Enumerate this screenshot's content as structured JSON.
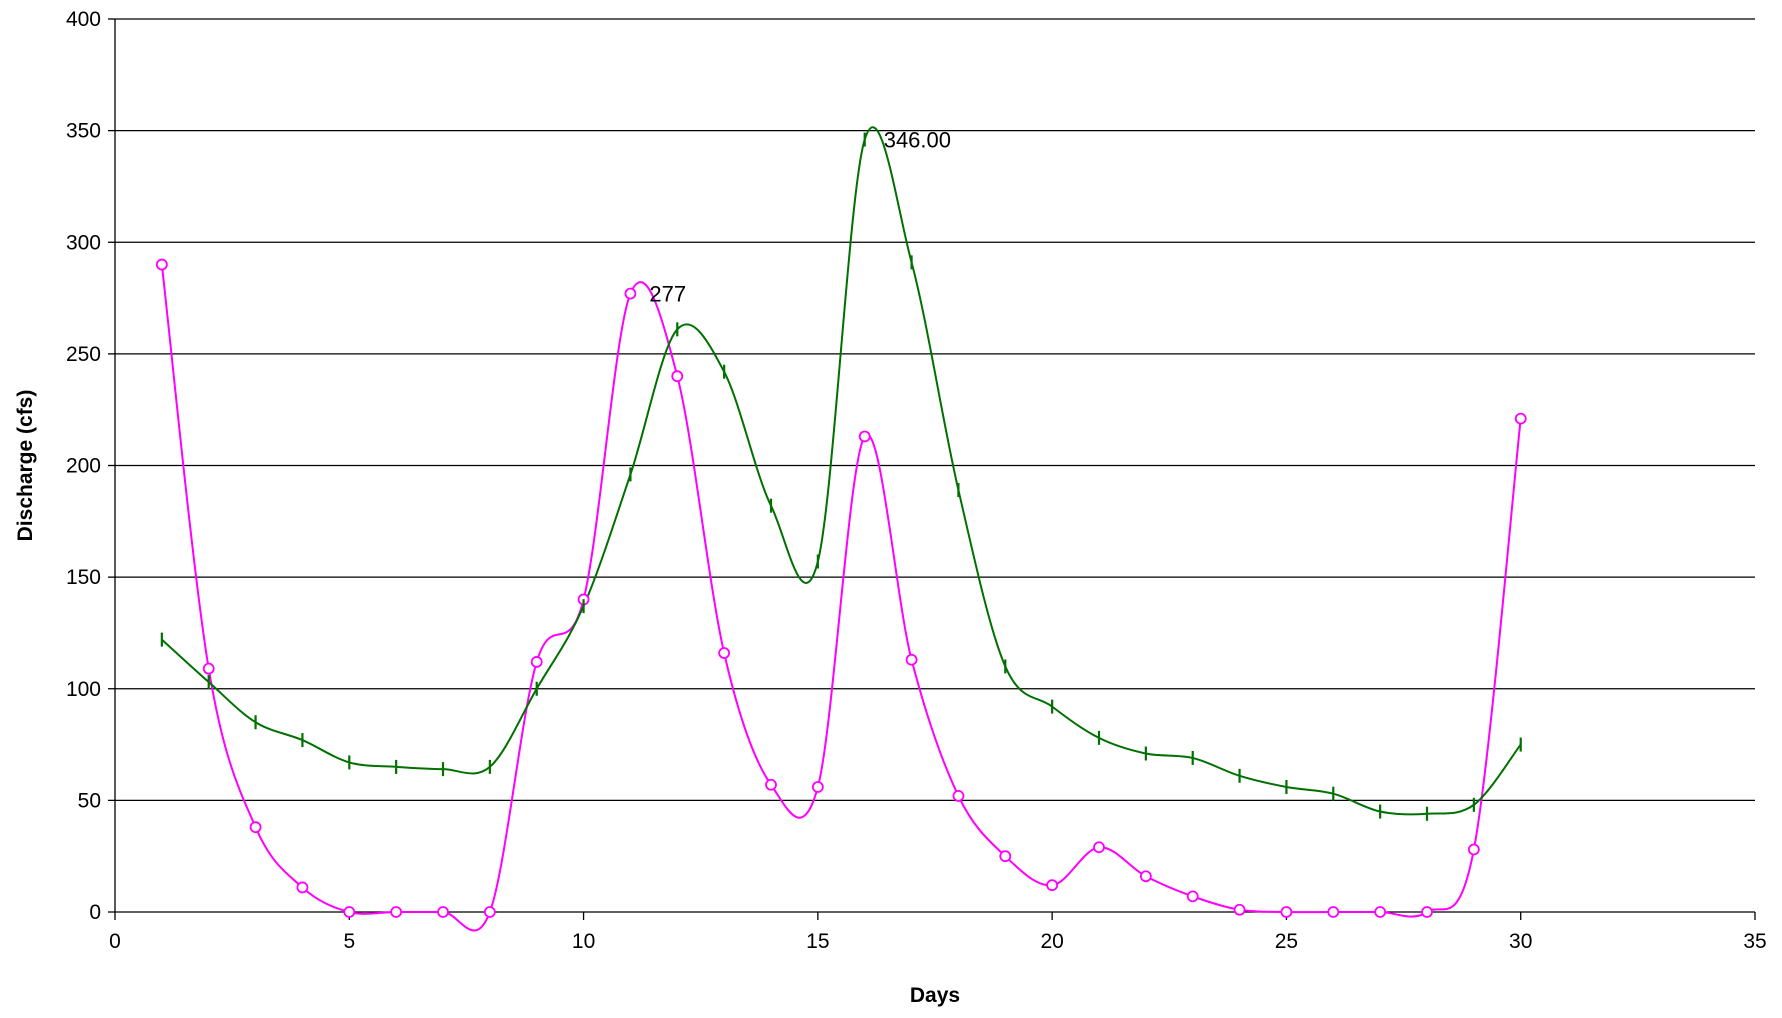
{
  "chart_data": {
    "type": "line",
    "title": "",
    "xlabel": "Days",
    "ylabel": "Discharge (cfs)",
    "xlim": [
      0,
      35
    ],
    "ylim": [
      0,
      400
    ],
    "xticks": [
      0,
      5,
      10,
      15,
      20,
      25,
      30,
      35
    ],
    "yticks": [
      0,
      50,
      100,
      150,
      200,
      250,
      300,
      350,
      400
    ],
    "grid": "horizontal",
    "legend": "none",
    "series": [
      {
        "color": "#ff00ff",
        "marker": "circle",
        "x": [
          1,
          2,
          3,
          4,
          5,
          6,
          7,
          8,
          9,
          10,
          11,
          12,
          13,
          14,
          15,
          16,
          17,
          18,
          19,
          20,
          21,
          22,
          23,
          24,
          25,
          26,
          27,
          28,
          29,
          30
        ],
        "y": [
          290,
          109,
          38,
          11,
          0,
          0,
          0,
          0,
          112,
          140,
          277,
          240,
          116,
          57,
          56,
          213,
          113,
          52,
          25,
          12,
          29,
          16,
          7,
          1,
          0,
          0,
          0,
          0,
          28,
          221
        ]
      },
      {
        "color": "#007000",
        "marker": "vline",
        "x": [
          1,
          2,
          3,
          4,
          5,
          6,
          7,
          8,
          9,
          10,
          11,
          12,
          13,
          14,
          15,
          16,
          17,
          18,
          19,
          20,
          21,
          22,
          23,
          24,
          25,
          26,
          27,
          28,
          29,
          30
        ],
        "y": [
          122,
          103,
          85,
          77,
          67,
          65,
          64,
          65,
          100,
          137,
          196,
          261,
          242,
          182,
          157,
          346,
          291,
          189,
          110,
          92,
          78,
          71,
          69,
          61,
          56,
          53,
          45,
          44,
          48,
          75
        ]
      }
    ],
    "annotations": [
      {
        "text": "277",
        "x": 11,
        "y": 277
      },
      {
        "text": "346.00",
        "x": 16,
        "y": 346
      }
    ]
  }
}
